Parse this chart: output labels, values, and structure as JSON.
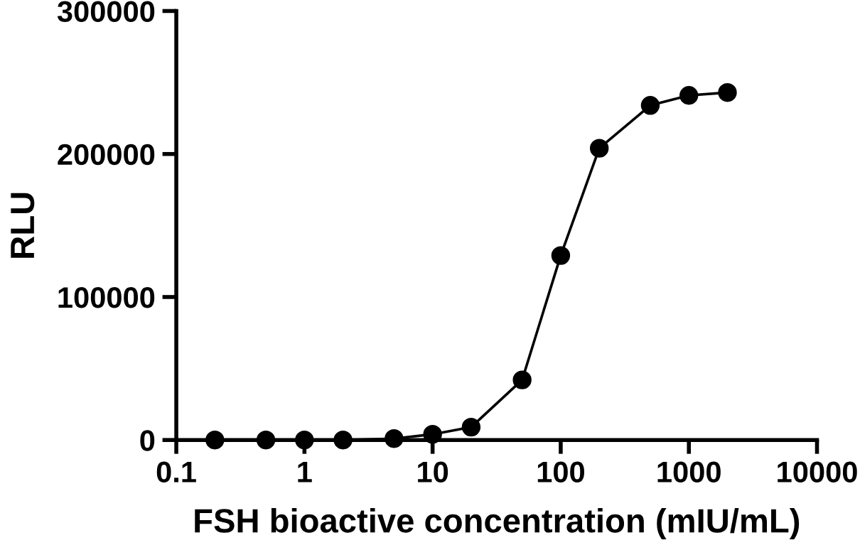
{
  "chart_data": {
    "type": "line",
    "xlabel": "FSH bioactive concentration (mIU/mL)",
    "ylabel": "RLU",
    "x": [
      0.2,
      0.5,
      1,
      2,
      5,
      10,
      20,
      50,
      100,
      200,
      500,
      1000,
      2000
    ],
    "series": [
      {
        "color": "#000000",
        "values": [
          0,
          0,
          0,
          0,
          1000,
          4000,
          9000,
          42000,
          129000,
          204000,
          234000,
          241000,
          243000
        ]
      }
    ],
    "log": "x",
    "xlim": [
      0.1,
      10000
    ],
    "xticks": [
      0.1,
      1,
      10,
      100,
      1000,
      10000
    ],
    "ylim": [
      0,
      300000
    ],
    "yticks": [
      0,
      100000,
      200000,
      300000
    ],
    "marker": "circle",
    "line_style": "solid",
    "grid": false,
    "legend": false
  }
}
